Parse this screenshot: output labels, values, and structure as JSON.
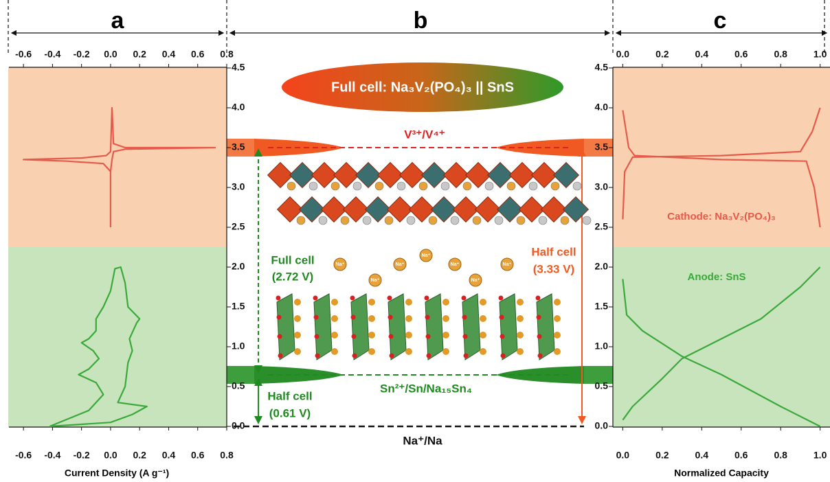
{
  "panels": [
    "a",
    "b",
    "c"
  ],
  "chart_data": [
    {
      "type": "line",
      "xlabel": "Current Density (A g⁻¹)",
      "xlim": [
        -0.7,
        0.8
      ],
      "xticks": [
        -0.6,
        -0.4,
        -0.2,
        {
          "value": 0,
          "label": "0.0"
        },
        0.2,
        0.4,
        0.6,
        0.8
      ],
      "ylim": [
        0,
        4.5
      ],
      "yticks": [
        {
          "value": 0,
          "label": "0.0"
        },
        0.5,
        {
          "value": 1,
          "label": "1.0"
        },
        1.5,
        {
          "value": 2,
          "label": "2.0"
        },
        2.5,
        {
          "value": 3,
          "label": "3.0"
        },
        3.5,
        {
          "value": 4,
          "label": "4.0"
        },
        4.5
      ],
      "series": [
        {
          "color": "#e55a4b",
          "x": [
            0.0,
            0.0,
            -0.05,
            -0.3,
            -0.6,
            -0.2,
            -0.03,
            0.0,
            0.01,
            0.02,
            0.1,
            0.72,
            0.1,
            0.02,
            0.01,
            0.0
          ],
          "values": [
            2.5,
            3.2,
            3.3,
            3.33,
            3.35,
            3.37,
            3.4,
            3.45,
            4.0,
            3.55,
            3.5,
            3.5,
            3.48,
            3.45,
            3.35,
            3.2
          ]
        },
        {
          "color": "#3aa83a",
          "x": [
            -0.42,
            0.0,
            0.15,
            0.25,
            0.05,
            0.1,
            0.12,
            0.15,
            0.13,
            0.18,
            0.2,
            0.12,
            0.1,
            0.07,
            0.03,
            0.0,
            -0.05,
            -0.1,
            -0.1,
            -0.15,
            -0.2,
            -0.12,
            -0.08,
            -0.15,
            -0.22,
            -0.1,
            -0.05,
            -0.15,
            -0.42
          ],
          "values": [
            0.0,
            0.05,
            0.15,
            0.25,
            0.3,
            0.5,
            0.8,
            0.95,
            1.1,
            1.3,
            1.35,
            1.5,
            1.8,
            2.0,
            1.98,
            1.7,
            1.5,
            1.35,
            1.2,
            1.1,
            1.05,
            0.95,
            0.85,
            0.72,
            0.65,
            0.55,
            0.4,
            0.2,
            0.0
          ]
        }
      ]
    },
    {
      "type": "line",
      "xlabel": "Normalized Capacity",
      "xlim": [
        -0.05,
        1.05
      ],
      "xticks": [
        {
          "value": 0,
          "label": "0.0"
        },
        0.2,
        0.4,
        0.6,
        0.8,
        {
          "value": 1,
          "label": "1.0"
        }
      ],
      "ylim": [
        0,
        4.5
      ],
      "yticks": [
        {
          "value": 0,
          "label": "0.0"
        },
        0.5,
        {
          "value": 1,
          "label": "1.0"
        },
        1.5,
        {
          "value": 2,
          "label": "2.0"
        },
        2.5,
        {
          "value": 3,
          "label": "3.0"
        },
        3.5,
        {
          "value": 4,
          "label": "4.0"
        },
        4.5
      ],
      "annotations": [
        "Cathode: Na₃V₂(PO₄)₃",
        "Anode: SnS"
      ],
      "series": [
        {
          "color": "#e55a4b",
          "x": [
            0.0,
            0.01,
            0.05,
            0.5,
            0.9,
            0.96,
            1.0
          ],
          "values": [
            2.6,
            3.2,
            3.38,
            3.4,
            3.45,
            3.7,
            4.0
          ]
        },
        {
          "color": "#e55a4b",
          "x": [
            0.0,
            0.03,
            0.06,
            0.5,
            0.93,
            0.97,
            1.0
          ],
          "values": [
            3.97,
            3.5,
            3.4,
            3.35,
            3.33,
            3.0,
            2.5
          ]
        },
        {
          "color": "#3aa83a",
          "x": [
            0.0,
            0.02,
            0.1,
            0.3,
            0.5,
            0.8,
            1.0
          ],
          "values": [
            1.85,
            1.4,
            1.2,
            0.88,
            0.65,
            0.25,
            0.0
          ]
        },
        {
          "color": "#3aa83a",
          "x": [
            0.0,
            0.05,
            0.2,
            0.3,
            0.5,
            0.7,
            0.9,
            1.0
          ],
          "values": [
            0.08,
            0.25,
            0.6,
            0.85,
            1.1,
            1.35,
            1.75,
            2.0
          ]
        }
      ]
    }
  ],
  "diagram": {
    "title": "Full cell: Na₃V₂(PO₄)₃ || SnS",
    "cathode_level": "V³⁺/V⁴⁺",
    "anode_level": "Sn²⁺/Sn/Na₁₅Sn₄",
    "reference": "Na⁺/Na",
    "full_cell": [
      "Full cell",
      "(2.72 V)"
    ],
    "half_cell_cathode": [
      "Half cell",
      "(3.33 V)"
    ],
    "half_cell_anode": [
      "Half cell",
      "(0.61 V)"
    ],
    "ion": "Na⁺"
  }
}
